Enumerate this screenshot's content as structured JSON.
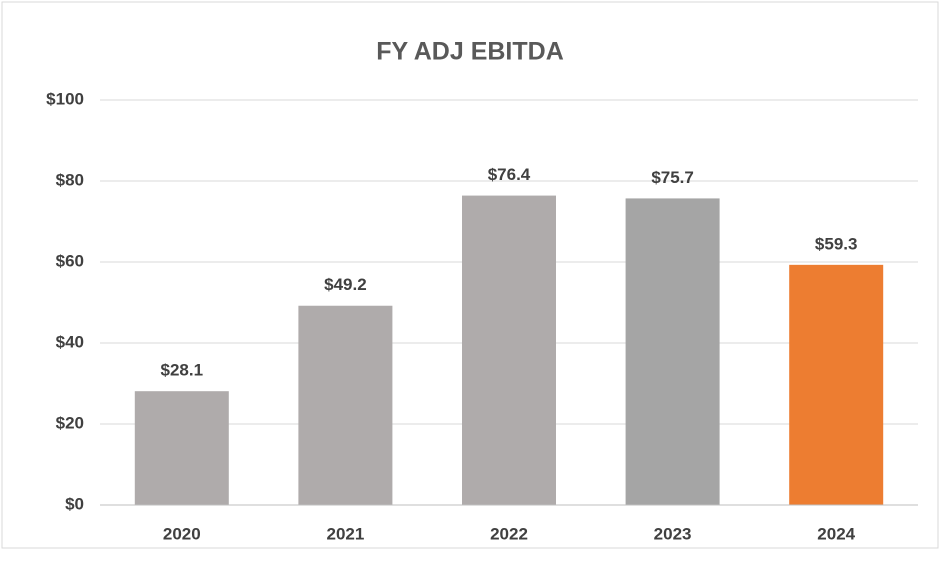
{
  "chart_data": {
    "type": "bar",
    "title": "FY ADJ EBITDA",
    "categories": [
      "2020",
      "2021",
      "2022",
      "2023",
      "2024"
    ],
    "values": [
      28.1,
      49.2,
      76.4,
      75.7,
      59.3
    ],
    "value_labels": [
      "$28.1",
      "$49.2",
      "$76.4",
      "$75.7",
      "$59.3"
    ],
    "colors": [
      "#afabab",
      "#afabab",
      "#afabab",
      "#a5a5a5",
      "#ed7d31"
    ],
    "ylim": [
      0,
      100
    ],
    "yticks": [
      {
        "value": 0,
        "label": "$0"
      },
      {
        "value": 20,
        "label": "$20"
      },
      {
        "value": 40,
        "label": "$40"
      },
      {
        "value": 60,
        "label": "$60"
      },
      {
        "value": 80,
        "label": "$80"
      },
      {
        "value": 100,
        "label": "$100"
      }
    ],
    "grid": true
  }
}
